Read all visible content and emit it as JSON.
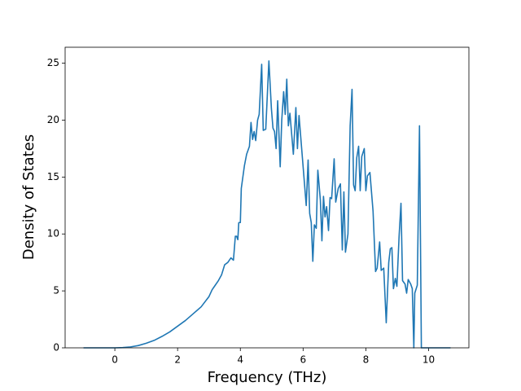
{
  "chart_data": {
    "type": "line",
    "xlabel": "Frequency (THz)",
    "ylabel": "Density of States",
    "xlim": [
      -1.585,
      11.285
    ],
    "ylim": [
      0,
      26.4
    ],
    "xticks": [
      0,
      2,
      4,
      6,
      8,
      10
    ],
    "yticks": [
      0,
      5,
      10,
      15,
      20,
      25
    ],
    "grid": false,
    "series": [
      {
        "color": "#1f77b4",
        "x": [
          -1.0,
          -0.5,
          0.0,
          0.25,
          0.5,
          0.75,
          1.0,
          1.25,
          1.5,
          1.75,
          2.0,
          2.25,
          2.5,
          2.75,
          3.0,
          3.1,
          3.2,
          3.3,
          3.4,
          3.5,
          3.6,
          3.7,
          3.78,
          3.84,
          3.88,
          3.92,
          3.95,
          4.0,
          4.03,
          4.13,
          4.2,
          4.29,
          4.34,
          4.39,
          4.44,
          4.49,
          4.55,
          4.6,
          4.68,
          4.73,
          4.81,
          4.91,
          4.99,
          5.04,
          5.09,
          5.14,
          5.19,
          5.27,
          5.32,
          5.38,
          5.43,
          5.48,
          5.53,
          5.58,
          5.69,
          5.77,
          5.82,
          5.87,
          6.1,
          6.16,
          6.21,
          6.26,
          6.31,
          6.36,
          6.42,
          6.47,
          6.55,
          6.6,
          6.65,
          6.7,
          6.75,
          6.81,
          6.86,
          6.91,
          6.99,
          7.04,
          7.12,
          7.19,
          7.25,
          7.3,
          7.35,
          7.43,
          7.5,
          7.56,
          7.61,
          7.66,
          7.71,
          7.77,
          7.82,
          7.87,
          7.95,
          8.0,
          8.05,
          8.13,
          8.23,
          8.31,
          8.36,
          8.44,
          8.49,
          8.57,
          8.65,
          8.73,
          8.78,
          8.83,
          8.88,
          8.94,
          8.99,
          9.06,
          9.12,
          9.17,
          9.25,
          9.3,
          9.35,
          9.43,
          9.48,
          9.53,
          9.56,
          9.64,
          9.71,
          9.77,
          10.0,
          10.7
        ],
        "values": [
          0,
          0,
          0,
          0.02,
          0.08,
          0.2,
          0.4,
          0.65,
          1.0,
          1.4,
          1.9,
          2.4,
          3.0,
          3.6,
          4.5,
          5.1,
          5.5,
          5.9,
          6.4,
          7.3,
          7.5,
          7.9,
          7.7,
          9.8,
          9.8,
          9.5,
          11.0,
          11.0,
          14.0,
          16.0,
          17.0,
          17.7,
          19.8,
          18.3,
          19.0,
          18.2,
          20.0,
          20.5,
          24.9,
          19.1,
          19.2,
          25.2,
          21.0,
          19.3,
          19.0,
          17.5,
          21.7,
          15.9,
          20.0,
          22.5,
          20.5,
          23.6,
          19.5,
          20.6,
          17.0,
          21.1,
          17.5,
          20.4,
          12.5,
          16.5,
          11.8,
          11.0,
          7.6,
          10.8,
          10.5,
          15.6,
          13.0,
          9.4,
          13.3,
          11.5,
          12.4,
          10.3,
          13.2,
          13.1,
          16.6,
          12.8,
          14.0,
          14.4,
          8.6,
          13.7,
          8.4,
          10.0,
          19.5,
          22.7,
          14.3,
          13.8,
          16.7,
          17.7,
          13.8,
          16.8,
          17.5,
          13.8,
          15.1,
          15.4,
          12.0,
          6.7,
          7.0,
          9.3,
          6.8,
          7.0,
          2.2,
          7.5,
          8.7,
          8.8,
          5.2,
          6.1,
          5.4,
          9.8,
          12.7,
          5.9,
          5.6,
          4.8,
          6.0,
          5.6,
          5.2,
          0,
          4.8,
          5.5,
          19.5,
          0,
          0,
          0
        ]
      }
    ]
  }
}
